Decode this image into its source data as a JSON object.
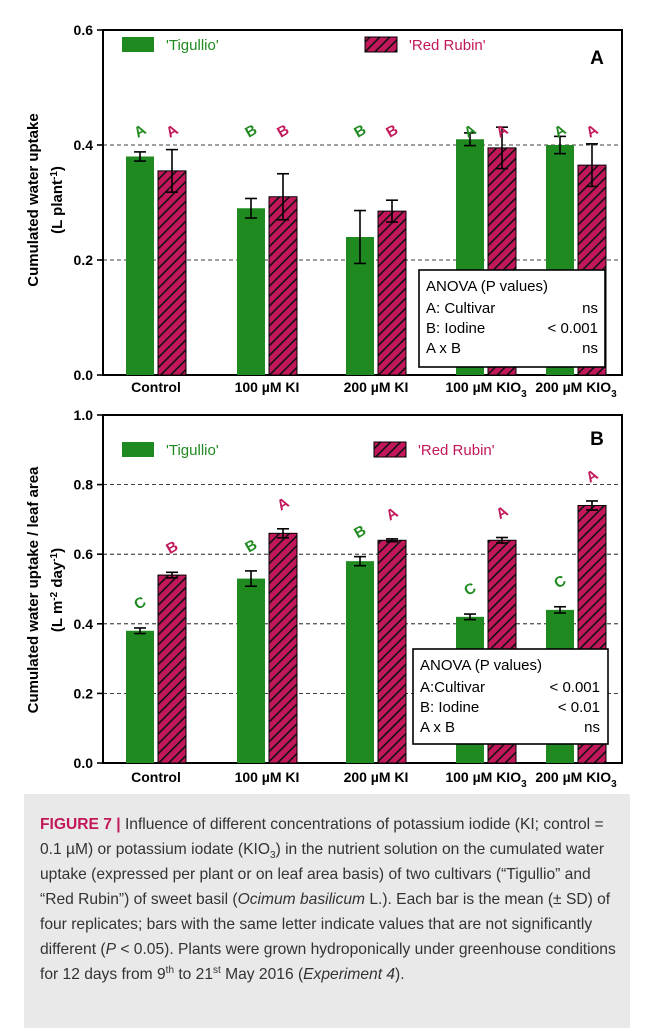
{
  "chart_data": [
    {
      "panel": "A",
      "type": "bar",
      "categories": [
        "Control",
        "100 µM KI",
        "200 µM KI",
        "100 µM KIO3",
        "200 µM KIO3"
      ],
      "category_labels": [
        {
          "main": "Control",
          "sub": ""
        },
        {
          "main": "100 µM KI",
          "sub": ""
        },
        {
          "main": "200 µM KI",
          "sub": ""
        },
        {
          "main": "100 µM KIO",
          "sub": "3"
        },
        {
          "main": "200 µM KIO",
          "sub": "3"
        }
      ],
      "ylabel_line1": "Cumulated water uptake",
      "ylabel_line2_pre": "(L plant",
      "ylabel_line2_sup": "-1",
      "ylabel_line2_post": ")",
      "ylim": [
        0,
        0.6
      ],
      "yticks": [
        "0.0",
        "0.2",
        "0.4",
        "0.6"
      ],
      "grid_y": [
        0.2,
        0.4
      ],
      "series": [
        {
          "name": "'Tigullio'",
          "color": "#1f8a1f",
          "pattern": "solid",
          "values": [
            0.38,
            0.29,
            0.24,
            0.41,
            0.4
          ],
          "errors": [
            0.008,
            0.017,
            0.046,
            0.011,
            0.015
          ],
          "letters": [
            "A",
            "B",
            "B",
            "A",
            "A"
          ]
        },
        {
          "name": "'Red Rubin'",
          "color": "#c2185b",
          "pattern": "hatched",
          "values": [
            0.355,
            0.31,
            0.285,
            0.395,
            0.365
          ],
          "errors": [
            0.037,
            0.04,
            0.019,
            0.036,
            0.037
          ],
          "letters": [
            "A",
            "B",
            "B",
            "A",
            "A"
          ]
        }
      ],
      "anova": {
        "title": "ANOVA (P values)",
        "rows": [
          {
            "label": "A: Cultivar",
            "value": "ns"
          },
          {
            "label": "B: Iodine",
            "value": "< 0.001"
          },
          {
            "label": "A x B",
            "value": "ns"
          }
        ]
      }
    },
    {
      "panel": "B",
      "type": "bar",
      "categories": [
        "Control",
        "100 µM KI",
        "200 µM KI",
        "100 µM KIO3",
        "200 µM KIO3"
      ],
      "category_labels": [
        {
          "main": "Control",
          "sub": ""
        },
        {
          "main": "100 µM KI",
          "sub": ""
        },
        {
          "main": "200 µM KI",
          "sub": ""
        },
        {
          "main": "100 µM KIO",
          "sub": "3"
        },
        {
          "main": "200 µM KIO",
          "sub": "3"
        }
      ],
      "ylabel_line1": "Cumulated water uptake / leaf area",
      "ylabel_line2_pre": "(L m",
      "ylabel_line2_sup": "-2",
      "ylabel_line2_mid": " day",
      "ylabel_line2_sup2": "-1",
      "ylabel_line2_post": ")",
      "ylim": [
        0,
        1.0
      ],
      "yticks": [
        "0.0",
        "0.2",
        "0.4",
        "0.6",
        "0.8",
        "1.0"
      ],
      "grid_y": [
        0.2,
        0.4,
        0.6,
        0.8
      ],
      "series": [
        {
          "name": "'Tigullio'",
          "color": "#1f8a1f",
          "pattern": "solid",
          "values": [
            0.38,
            0.53,
            0.58,
            0.42,
            0.44
          ],
          "errors": [
            0.008,
            0.022,
            0.013,
            0.008,
            0.009
          ],
          "letters": [
            "C",
            "B",
            "B",
            "C",
            "C"
          ]
        },
        {
          "name": "'Red Rubin'",
          "color": "#c2185b",
          "pattern": "hatched",
          "values": [
            0.54,
            0.66,
            0.64,
            0.64,
            0.74
          ],
          "errors": [
            0.008,
            0.013,
            0.004,
            0.008,
            0.013
          ],
          "letters": [
            "B",
            "A",
            "A",
            "A",
            "A"
          ]
        }
      ],
      "anova": {
        "title": "ANOVA (P values)",
        "rows": [
          {
            "label": "A:Cultivar",
            "value": "< 0.001"
          },
          {
            "label": "B: Iodine",
            "value": "< 0.01"
          },
          {
            "label": "A x B",
            "value": "ns"
          }
        ]
      }
    }
  ],
  "caption": {
    "label": "FIGURE 7 |",
    "text_1": " Influence of different concentrations of potassium iodide (KI; control = 0.1 µM) or potassium iodate (KIO",
    "sub_1": "3",
    "text_2": ") in the nutrient solution on the cumulated water uptake (expressed per plant or on leaf area basis) of two cultivars (“Tigullio” and “Red Rubin”) of sweet basil (",
    "italic_1": "Ocimum basilicum",
    "text_3": " L.). Each bar is the mean (± SD) of four replicates; bars with the same letter indicate values that are not significantly different (",
    "italic_2": "P",
    "text_4": " < 0.05). Plants were grown hydroponically under greenhouse conditions for 12 days from 9",
    "sup_1": "th",
    "text_5": " to 21",
    "sup_2": "st",
    "text_6": " May 2016 (",
    "italic_3": "Experiment 4",
    "text_7": ")."
  }
}
